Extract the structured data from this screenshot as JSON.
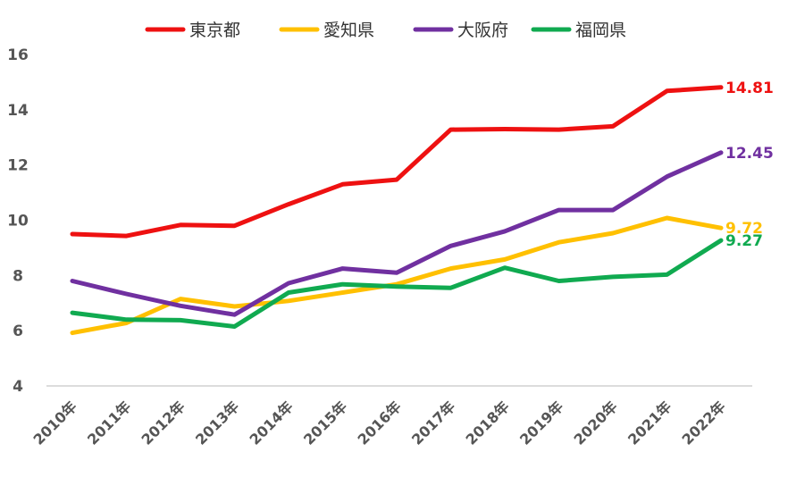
{
  "chart_data": {
    "type": "line",
    "title": "",
    "xlabel": "",
    "ylabel": "",
    "ylim": [
      4,
      16
    ],
    "yticks": [
      4,
      6,
      8,
      10,
      12,
      14,
      16
    ],
    "grid": false,
    "legend_position": "top",
    "categories": [
      "2010年",
      "2011年",
      "2012年",
      "2013年",
      "2014年",
      "2015年",
      "2016年",
      "2017年",
      "2018年",
      "2019年",
      "2020年",
      "2021年",
      "2022年"
    ],
    "series": [
      {
        "name": "東京都",
        "color": "#ee1111",
        "end_label": "14.81",
        "values": [
          9.5,
          9.43,
          9.83,
          9.8,
          10.58,
          11.3,
          11.47,
          13.28,
          13.3,
          13.28,
          13.4,
          14.68,
          14.81
        ]
      },
      {
        "name": "愛知県",
        "color": "#ffc000",
        "end_label": "9.72",
        "values": [
          5.92,
          6.28,
          7.15,
          6.88,
          7.08,
          7.38,
          7.68,
          8.25,
          8.58,
          9.2,
          9.53,
          10.08,
          9.72
        ]
      },
      {
        "name": "大阪府",
        "color": "#7030a0",
        "end_label": "12.45",
        "values": [
          7.8,
          7.33,
          6.9,
          6.58,
          7.72,
          8.25,
          8.1,
          9.07,
          9.6,
          10.37,
          10.37,
          11.58,
          12.45
        ]
      },
      {
        "name": "福岡県",
        "color": "#10aa50",
        "end_label": "9.27",
        "values": [
          6.65,
          6.4,
          6.38,
          6.15,
          7.38,
          7.68,
          7.6,
          7.55,
          8.28,
          7.8,
          7.95,
          8.03,
          9.27
        ]
      }
    ]
  }
}
